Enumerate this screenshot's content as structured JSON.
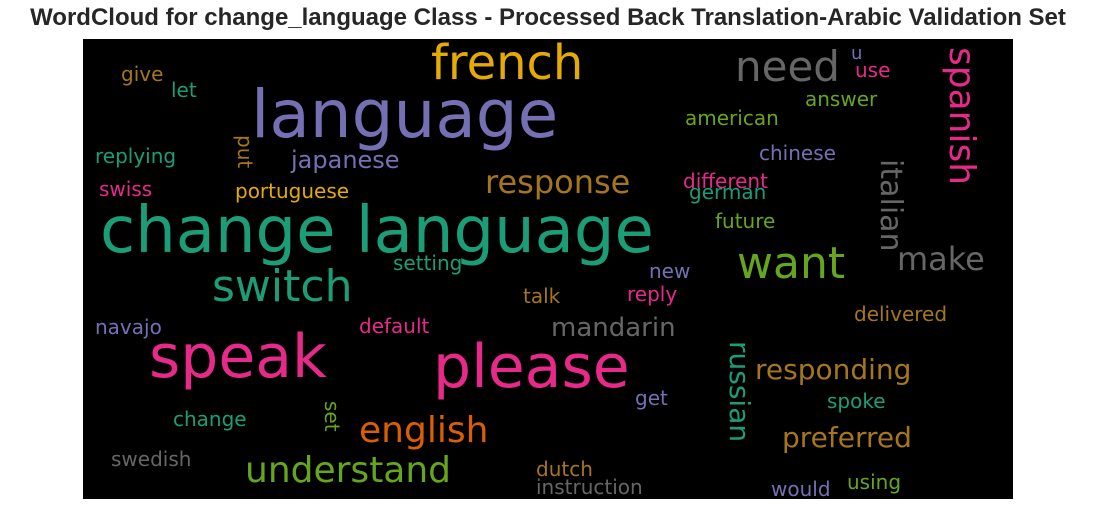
{
  "chart_data": {
    "type": "wordcloud",
    "title": "WordCloud for change_language Class - Processed Back Translation-Arabic Validation Set",
    "background": "#000000",
    "words": [
      {
        "text": "change language",
        "color": "#1b9e77"
      },
      {
        "text": "language",
        "color": "#7570b3"
      },
      {
        "text": "speak",
        "color": "#e7298a"
      },
      {
        "text": "please",
        "color": "#e7298a"
      },
      {
        "text": "french",
        "color": "#e6ab02"
      },
      {
        "text": "switch",
        "color": "#1b9e77"
      },
      {
        "text": "want",
        "color": "#66a61e"
      },
      {
        "text": "need",
        "color": "#666666"
      },
      {
        "text": "spanish",
        "color": "#e7298a"
      },
      {
        "text": "understand",
        "color": "#66a61e"
      },
      {
        "text": "english",
        "color": "#d95f02"
      },
      {
        "text": "response",
        "color": "#a6761d"
      },
      {
        "text": "make",
        "color": "#666666"
      },
      {
        "text": "italian",
        "color": "#666666"
      },
      {
        "text": "russian",
        "color": "#1b9e77"
      },
      {
        "text": "preferred",
        "color": "#a6761d"
      },
      {
        "text": "responding",
        "color": "#a6761d"
      },
      {
        "text": "mandarin",
        "color": "#666666"
      },
      {
        "text": "japanese",
        "color": "#7570b3"
      },
      {
        "text": "chinese",
        "color": "#7570b3"
      },
      {
        "text": "different",
        "color": "#e7298a"
      },
      {
        "text": "german",
        "color": "#1b9e77"
      },
      {
        "text": "american",
        "color": "#66a61e"
      },
      {
        "text": "answer",
        "color": "#66a61e"
      },
      {
        "text": "future",
        "color": "#66a61e"
      },
      {
        "text": "portuguese",
        "color": "#e6ab02"
      },
      {
        "text": "replying",
        "color": "#1b9e77"
      },
      {
        "text": "setting",
        "color": "#1b9e77"
      },
      {
        "text": "delivered",
        "color": "#a6761d"
      },
      {
        "text": "default",
        "color": "#e7298a"
      },
      {
        "text": "navajo",
        "color": "#7570b3"
      },
      {
        "text": "change",
        "color": "#1b9e77"
      },
      {
        "text": "swedish",
        "color": "#666666"
      },
      {
        "text": "instruction",
        "color": "#666666"
      },
      {
        "text": "dutch",
        "color": "#a6761d"
      },
      {
        "text": "spoke",
        "color": "#1b9e77"
      },
      {
        "text": "using",
        "color": "#66a61e"
      },
      {
        "text": "would",
        "color": "#7570b3"
      },
      {
        "text": "give",
        "color": "#a6761d"
      },
      {
        "text": "let",
        "color": "#1b9e77"
      },
      {
        "text": "use",
        "color": "#e7298a"
      },
      {
        "text": "swiss",
        "color": "#e7298a"
      },
      {
        "text": "put",
        "color": "#a6761d"
      },
      {
        "text": "talk",
        "color": "#a6761d"
      },
      {
        "text": "new",
        "color": "#7570b3"
      },
      {
        "text": "reply",
        "color": "#e7298a"
      },
      {
        "text": "get",
        "color": "#7570b3"
      },
      {
        "text": "set",
        "color": "#66a61e"
      },
      {
        "text": "u",
        "color": "#7570b3"
      }
    ]
  }
}
